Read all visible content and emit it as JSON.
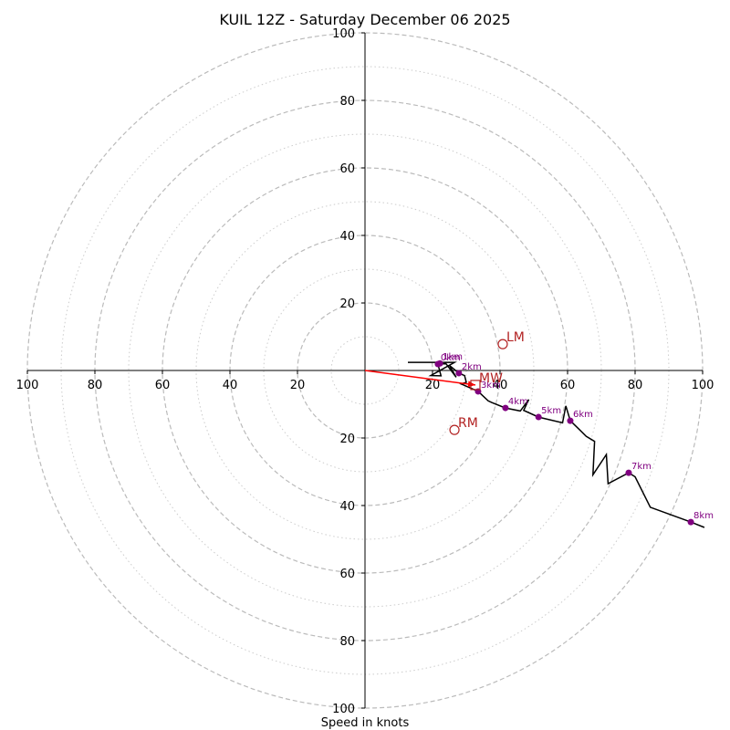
{
  "chart_data": {
    "type": "line",
    "subtype": "hodograph",
    "title": "KUIL 12Z - Saturday December 06 2025",
    "xlabel": "Speed in knots",
    "ylabel": "",
    "xlim": [
      -100,
      100
    ],
    "ylim": [
      -100,
      100
    ],
    "grid": true,
    "ring_major": [
      20,
      40,
      60,
      80,
      100
    ],
    "ring_minor": [
      10,
      30,
      50,
      70,
      90
    ],
    "tick_labels": [
      "100",
      "80",
      "60",
      "40",
      "20",
      "20",
      "40",
      "60",
      "80",
      "100"
    ],
    "x_ticks": [
      -100,
      -80,
      -60,
      -40,
      -20,
      20,
      40,
      60,
      80,
      100
    ],
    "y_ticks": [
      -100,
      -80,
      -60,
      -40,
      -20,
      20,
      40,
      60,
      80,
      100
    ],
    "hodograph": {
      "color": "#000000",
      "points": [
        [
          12.7,
          2.4
        ],
        [
          26.5,
          2.4
        ],
        [
          19.5,
          -1.5
        ],
        [
          22.5,
          -1.6
        ],
        [
          21.6,
          1.9
        ],
        [
          24.0,
          2.0
        ],
        [
          27.0,
          -2.0
        ],
        [
          25.0,
          1.5
        ],
        [
          27.8,
          -0.8
        ],
        [
          29.5,
          -1.5
        ],
        [
          30.0,
          -3.5
        ],
        [
          28.5,
          -4.0
        ],
        [
          33.5,
          -6.2
        ],
        [
          36.5,
          -9.0
        ],
        [
          37.5,
          -9.5
        ],
        [
          41.6,
          -11.1
        ],
        [
          46.0,
          -12.0
        ],
        [
          48.5,
          -8.6
        ],
        [
          47.0,
          -11.8
        ],
        [
          51.4,
          -13.8
        ],
        [
          58.5,
          -15.5
        ],
        [
          59.5,
          -10.5
        ],
        [
          60.8,
          -14.9
        ],
        [
          63.5,
          -17.5
        ],
        [
          65.5,
          -19.5
        ],
        [
          68.0,
          -21.0
        ],
        [
          67.5,
          -30.9
        ],
        [
          71.5,
          -24.9
        ],
        [
          72.0,
          -33.5
        ],
        [
          78.1,
          -30.3
        ],
        [
          80.0,
          -31.5
        ],
        [
          84.5,
          -40.5
        ],
        [
          96.5,
          -44.9
        ],
        [
          100.5,
          -46.5
        ]
      ]
    },
    "height_markers": [
      {
        "label": "0km",
        "u": 21.6,
        "v": 1.9
      },
      {
        "label": "1km",
        "u": 22.2,
        "v": 2.1
      },
      {
        "label": "2km",
        "u": 27.8,
        "v": -0.8
      },
      {
        "label": "3km",
        "u": 33.5,
        "v": -6.2
      },
      {
        "label": "4km",
        "u": 41.6,
        "v": -11.1
      },
      {
        "label": "5km",
        "u": 51.4,
        "v": -13.8
      },
      {
        "label": "6km",
        "u": 60.8,
        "v": -14.9
      },
      {
        "label": "7km",
        "u": 78.1,
        "v": -30.3
      },
      {
        "label": "8km",
        "u": 96.5,
        "v": -44.9
      }
    ],
    "marker_color": "#800080",
    "motion_color": "#b22222",
    "storm_motions": [
      {
        "label": "LM",
        "u": 40.8,
        "v": 7.8,
        "shape": "circle"
      },
      {
        "label": "RM",
        "u": 26.5,
        "v": -17.6,
        "shape": "circle"
      },
      {
        "label": "MW",
        "u": 32.7,
        "v": -4.3,
        "shape": "square"
      }
    ],
    "shear_vector": {
      "from": [
        0,
        0
      ],
      "to": [
        32.7,
        -4.3
      ],
      "color": "#ff0000"
    }
  }
}
